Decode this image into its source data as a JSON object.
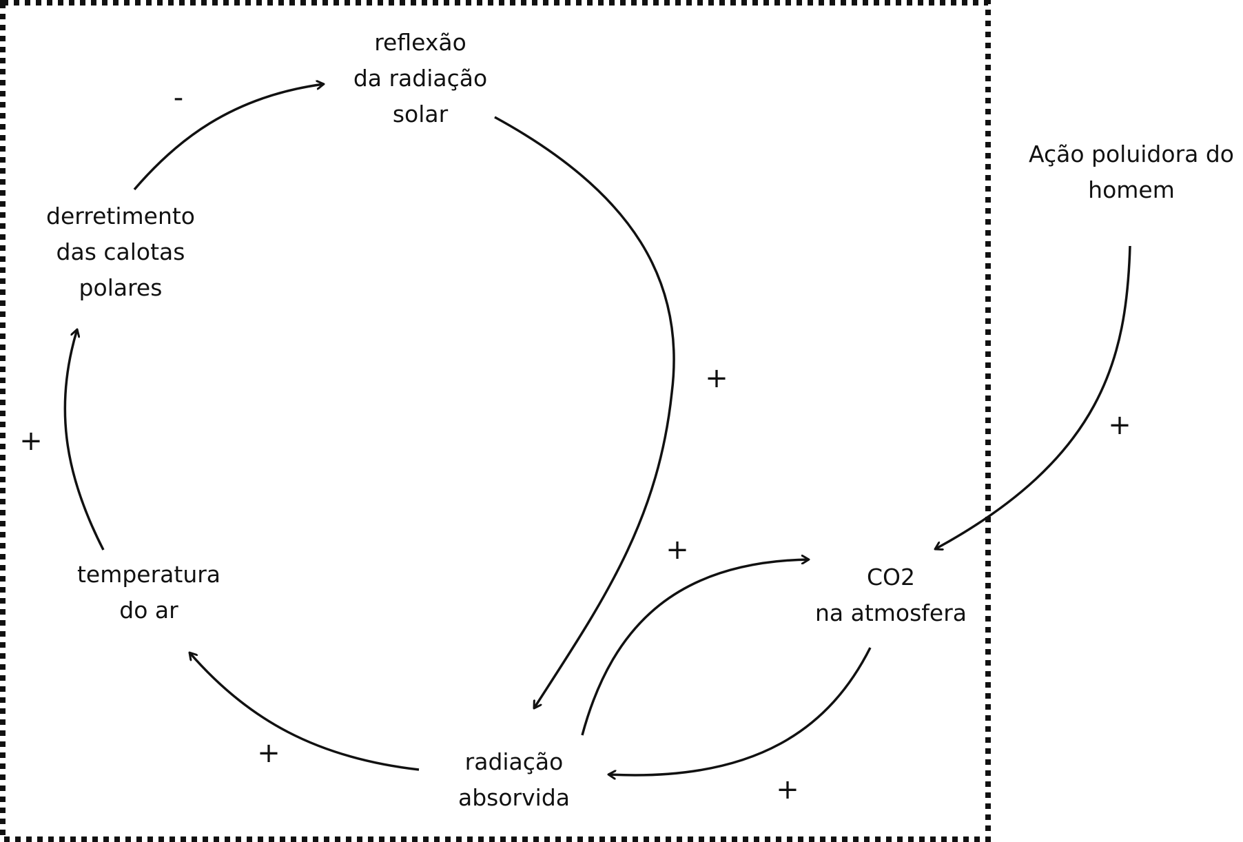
{
  "nodes": {
    "reflexao": [
      "reflexão",
      "da radiação",
      "solar"
    ],
    "derretimento": [
      "derretimento",
      "das calotas",
      "polares"
    ],
    "temperatura": [
      "temperatura",
      "do ar"
    ],
    "radiacao_absorvida": [
      "radiação",
      "absorvida"
    ],
    "co2": [
      "CO2",
      "na atmosfera"
    ],
    "acao_poluidora": [
      "Ação poluidora do",
      "homem"
    ]
  },
  "links": {
    "derretimento_to_reflexao": "-",
    "reflexao_to_radiacao_absorvida": "+",
    "temperatura_to_derretimento": "+",
    "radiacao_absorvida_to_temperatura": "+",
    "radiacao_absorvida_to_co2": "+",
    "co2_to_radiacao_absorvida": "+",
    "acao_poluidora_to_co2": "+"
  },
  "colors": {
    "stroke": "#111111",
    "boundary": "#111111"
  }
}
